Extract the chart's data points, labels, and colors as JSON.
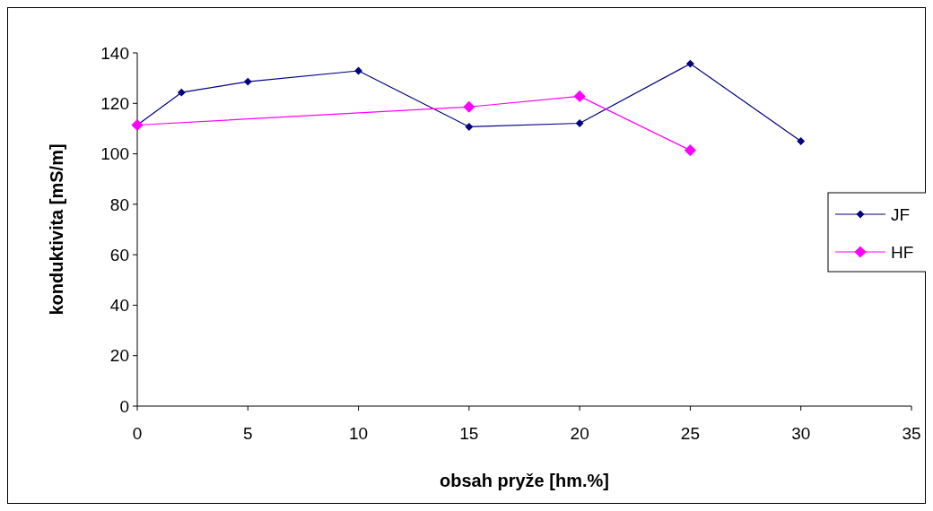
{
  "chart_data": {
    "type": "line",
    "xlabel": "obsah pryže [hm.%]",
    "ylabel": "konduktivita [mS/m]",
    "xlim": [
      0,
      35
    ],
    "xticks": [
      0,
      5,
      10,
      15,
      20,
      25,
      30,
      35
    ],
    "ylim": [
      0,
      140
    ],
    "yticks": [
      0,
      20,
      40,
      60,
      80,
      100,
      120,
      140
    ],
    "grid": false,
    "legend": "right",
    "marker": "diamond",
    "series": [
      {
        "name": "JF",
        "color": "#000080",
        "x": [
          0,
          2,
          5,
          10,
          15,
          20,
          25,
          30
        ],
        "values": [
          111.4,
          124.3,
          128.6,
          132.9,
          110.7,
          112.1,
          135.7,
          105
        ]
      },
      {
        "name": "HF",
        "color": "#ff00ff",
        "x": [
          0,
          15,
          20,
          25
        ],
        "values": [
          111.4,
          118.6,
          122.8,
          101.4
        ]
      }
    ]
  }
}
